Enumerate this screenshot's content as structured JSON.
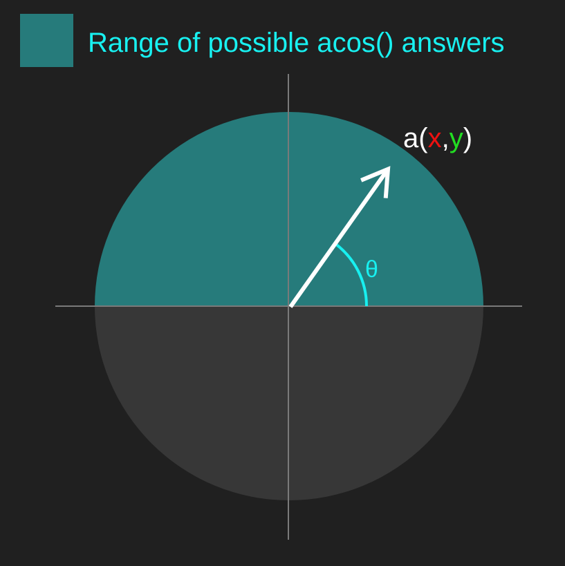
{
  "legend": {
    "label": "Range of possible acos() answers",
    "swatch_color": "#267b7b",
    "text_color": "#18f0f0"
  },
  "point_label": {
    "prefix": "a(",
    "x": "x",
    "comma": ",",
    "y": "y",
    "suffix": ")"
  },
  "angle_label": "θ",
  "colors": {
    "background": "#202020",
    "upper_half": "#267b7b",
    "lower_half": "#373737",
    "axis": "#7a7a7a",
    "vector": "#ffffff",
    "angle_arc": "#18f0f0",
    "x_label": "#ee1111",
    "y_label": "#22dd22",
    "point_text": "#ffffff"
  },
  "vector_angle_degrees": 54
}
